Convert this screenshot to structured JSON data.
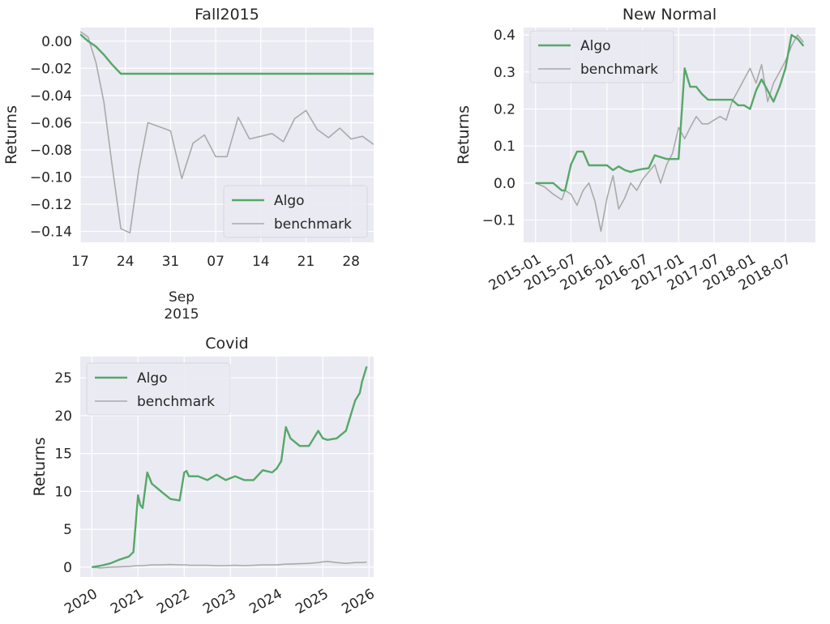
{
  "chart_data": [
    {
      "type": "line",
      "title": "Fall2015",
      "xlabel": "",
      "ylabel": "Returns",
      "x_tick_labels": [
        "17",
        "24",
        "31",
        "07",
        "14",
        "21",
        "28"
      ],
      "x_month_label": "Sep",
      "x_year_label": "2015",
      "xlim": [
        0,
        13
      ],
      "ylim": [
        -0.148,
        0.01
      ],
      "y_ticks": [
        0.0,
        -0.02,
        -0.04,
        -0.06,
        -0.08,
        -0.1,
        -0.12,
        -0.14
      ],
      "y_tick_labels": [
        "0.00",
        "−0.02",
        "−0.04",
        "−0.06",
        "−0.08",
        "−0.10",
        "−0.12",
        "−0.14"
      ],
      "grid": true,
      "legend": "lower-right",
      "x": [
        0,
        0.35,
        0.7,
        1.05,
        1.4,
        1.8,
        2.2,
        2.6,
        3.0,
        3.5,
        4.0,
        4.5,
        5.0,
        5.5,
        6.0,
        6.5,
        7.0,
        7.5,
        8.0,
        8.5,
        9.0,
        9.5,
        10.0,
        10.5,
        11.0,
        11.5,
        12.0,
        12.5,
        13.0
      ],
      "series": [
        {
          "name": "Algo",
          "color": "#55a868",
          "values": [
            0.005,
            0.0,
            -0.004,
            -0.01,
            -0.017,
            -0.024,
            -0.024,
            -0.024,
            -0.024,
            -0.024,
            -0.024,
            -0.024,
            -0.024,
            -0.024,
            -0.024,
            -0.024,
            -0.024,
            -0.024,
            -0.024,
            -0.024,
            -0.024,
            -0.024,
            -0.024,
            -0.024,
            -0.024,
            -0.024,
            -0.024,
            -0.024,
            -0.024
          ]
        },
        {
          "name": "benchmark",
          "color": "#aaaaaa",
          "values": [
            0.007,
            0.003,
            -0.016,
            -0.045,
            -0.09,
            -0.138,
            -0.141,
            -0.094,
            -0.06,
            -0.063,
            -0.066,
            -0.101,
            -0.075,
            -0.069,
            -0.085,
            -0.085,
            -0.056,
            -0.072,
            -0.07,
            -0.068,
            -0.074,
            -0.057,
            -0.051,
            -0.065,
            -0.071,
            -0.064,
            -0.072,
            -0.07,
            -0.076
          ]
        }
      ]
    },
    {
      "type": "line",
      "title": "New Normal",
      "xlabel": "",
      "ylabel": "Returns",
      "x_tick_labels": [
        "2015-01",
        "2015-07",
        "2016-01",
        "2016-07",
        "2017-01",
        "2017-07",
        "2018-01",
        "2018-07"
      ],
      "x_ticks": [
        "2015-01-01",
        "2015-07-01",
        "2016-01-01",
        "2016-07-01",
        "2017-01-01",
        "2017-07-01",
        "2018-01-01",
        "2018-07-01"
      ],
      "xlim": [
        "2014-11-01",
        "2018-12-01"
      ],
      "ylim": [
        -0.16,
        0.42
      ],
      "y_ticks": [
        -0.1,
        0.0,
        0.1,
        0.2,
        0.3,
        0.4
      ],
      "y_tick_labels": [
        "−0.1",
        "0.0",
        "0.1",
        "0.2",
        "0.3",
        "0.4"
      ],
      "grid": true,
      "legend": "upper-left",
      "x": [
        "2015-01-01",
        "2015-02-15",
        "2015-04-01",
        "2015-05-15",
        "2015-06-01",
        "2015-07-01",
        "2015-08-01",
        "2015-09-01",
        "2015-10-01",
        "2015-11-01",
        "2015-12-01",
        "2016-01-01",
        "2016-02-01",
        "2016-03-01",
        "2016-04-01",
        "2016-05-01",
        "2016-06-01",
        "2016-07-01",
        "2016-08-01",
        "2016-09-01",
        "2016-10-01",
        "2016-11-01",
        "2016-12-01",
        "2017-01-01",
        "2017-02-01",
        "2017-03-01",
        "2017-04-01",
        "2017-05-01",
        "2017-06-01",
        "2017-07-01",
        "2017-08-01",
        "2017-09-01",
        "2017-10-01",
        "2017-11-01",
        "2017-12-01",
        "2018-01-01",
        "2018-02-01",
        "2018-03-01",
        "2018-04-01",
        "2018-05-01",
        "2018-06-01",
        "2018-07-01",
        "2018-08-01",
        "2018-09-01",
        "2018-10-01"
      ],
      "series": [
        {
          "name": "Algo",
          "color": "#55a868",
          "values": [
            0.0,
            0.0,
            0.0,
            -0.02,
            -0.02,
            0.05,
            0.085,
            0.085,
            0.048,
            0.048,
            0.048,
            0.048,
            0.035,
            0.045,
            0.035,
            0.03,
            0.035,
            0.038,
            0.04,
            0.075,
            0.07,
            0.065,
            0.065,
            0.065,
            0.31,
            0.26,
            0.26,
            0.24,
            0.225,
            0.225,
            0.225,
            0.225,
            0.225,
            0.21,
            0.21,
            0.2,
            0.25,
            0.28,
            0.25,
            0.22,
            0.26,
            0.31,
            0.4,
            0.39,
            0.37
          ]
        },
        {
          "name": "benchmark",
          "color": "#aaaaaa",
          "values": [
            0.0,
            -0.01,
            -0.03,
            -0.045,
            -0.02,
            -0.03,
            -0.06,
            -0.02,
            0.0,
            -0.05,
            -0.13,
            -0.04,
            0.02,
            -0.07,
            -0.04,
            0.0,
            -0.02,
            0.01,
            0.03,
            0.05,
            0.0,
            0.05,
            0.08,
            0.15,
            0.12,
            0.15,
            0.18,
            0.16,
            0.16,
            0.17,
            0.18,
            0.17,
            0.22,
            0.25,
            0.28,
            0.31,
            0.27,
            0.32,
            0.22,
            0.27,
            0.3,
            0.33,
            0.37,
            0.4,
            0.38
          ]
        }
      ]
    },
    {
      "type": "line",
      "title": "Covid",
      "xlabel": "",
      "ylabel": "Returns",
      "x_tick_labels": [
        "2020",
        "2021",
        "2022",
        "2023",
        "2024",
        "2025",
        "2026"
      ],
      "x_ticks": [
        2020,
        2021,
        2022,
        2023,
        2024,
        2025,
        2026
      ],
      "xlim": [
        2019.75,
        2026.1
      ],
      "ylim": [
        -1.3,
        27.8
      ],
      "y_ticks": [
        0,
        5,
        10,
        15,
        20,
        25
      ],
      "y_tick_labels": [
        "0",
        "5",
        "10",
        "15",
        "20",
        "25"
      ],
      "grid": true,
      "legend": "upper-left",
      "x": [
        2020.0,
        2020.2,
        2020.4,
        2020.6,
        2020.8,
        2020.9,
        2021.0,
        2021.05,
        2021.1,
        2021.2,
        2021.3,
        2021.4,
        2021.5,
        2021.7,
        2021.9,
        2022.0,
        2022.05,
        2022.1,
        2022.3,
        2022.5,
        2022.7,
        2022.9,
        2023.1,
        2023.3,
        2023.5,
        2023.7,
        2023.9,
        2024.0,
        2024.1,
        2024.2,
        2024.3,
        2024.5,
        2024.7,
        2024.9,
        2025.0,
        2025.1,
        2025.3,
        2025.5,
        2025.6,
        2025.7,
        2025.8,
        2025.85,
        2025.9,
        2025.95
      ],
      "series": [
        {
          "name": "Algo",
          "color": "#55a868",
          "values": [
            0.0,
            0.2,
            0.5,
            1.0,
            1.4,
            2.0,
            9.5,
            8.2,
            7.8,
            12.5,
            11.0,
            10.5,
            10.0,
            9.0,
            8.8,
            12.5,
            12.7,
            12.0,
            12.0,
            11.5,
            12.2,
            11.5,
            12.0,
            11.5,
            11.5,
            12.8,
            12.5,
            13.0,
            14.0,
            18.5,
            17.0,
            16.0,
            16.0,
            18.0,
            17.0,
            16.8,
            17.0,
            18.0,
            20.0,
            22.0,
            23.0,
            24.5,
            25.5,
            26.5
          ]
        },
        {
          "name": "benchmark",
          "color": "#aaaaaa",
          "values": [
            0.0,
            -0.1,
            0.0,
            0.05,
            0.1,
            0.15,
            0.2,
            0.2,
            0.2,
            0.25,
            0.3,
            0.3,
            0.3,
            0.35,
            0.3,
            0.3,
            0.3,
            0.25,
            0.25,
            0.25,
            0.2,
            0.2,
            0.25,
            0.2,
            0.25,
            0.3,
            0.3,
            0.3,
            0.35,
            0.4,
            0.4,
            0.45,
            0.5,
            0.6,
            0.7,
            0.75,
            0.6,
            0.5,
            0.55,
            0.6,
            0.6,
            0.62,
            0.65,
            0.65
          ]
        }
      ]
    }
  ]
}
